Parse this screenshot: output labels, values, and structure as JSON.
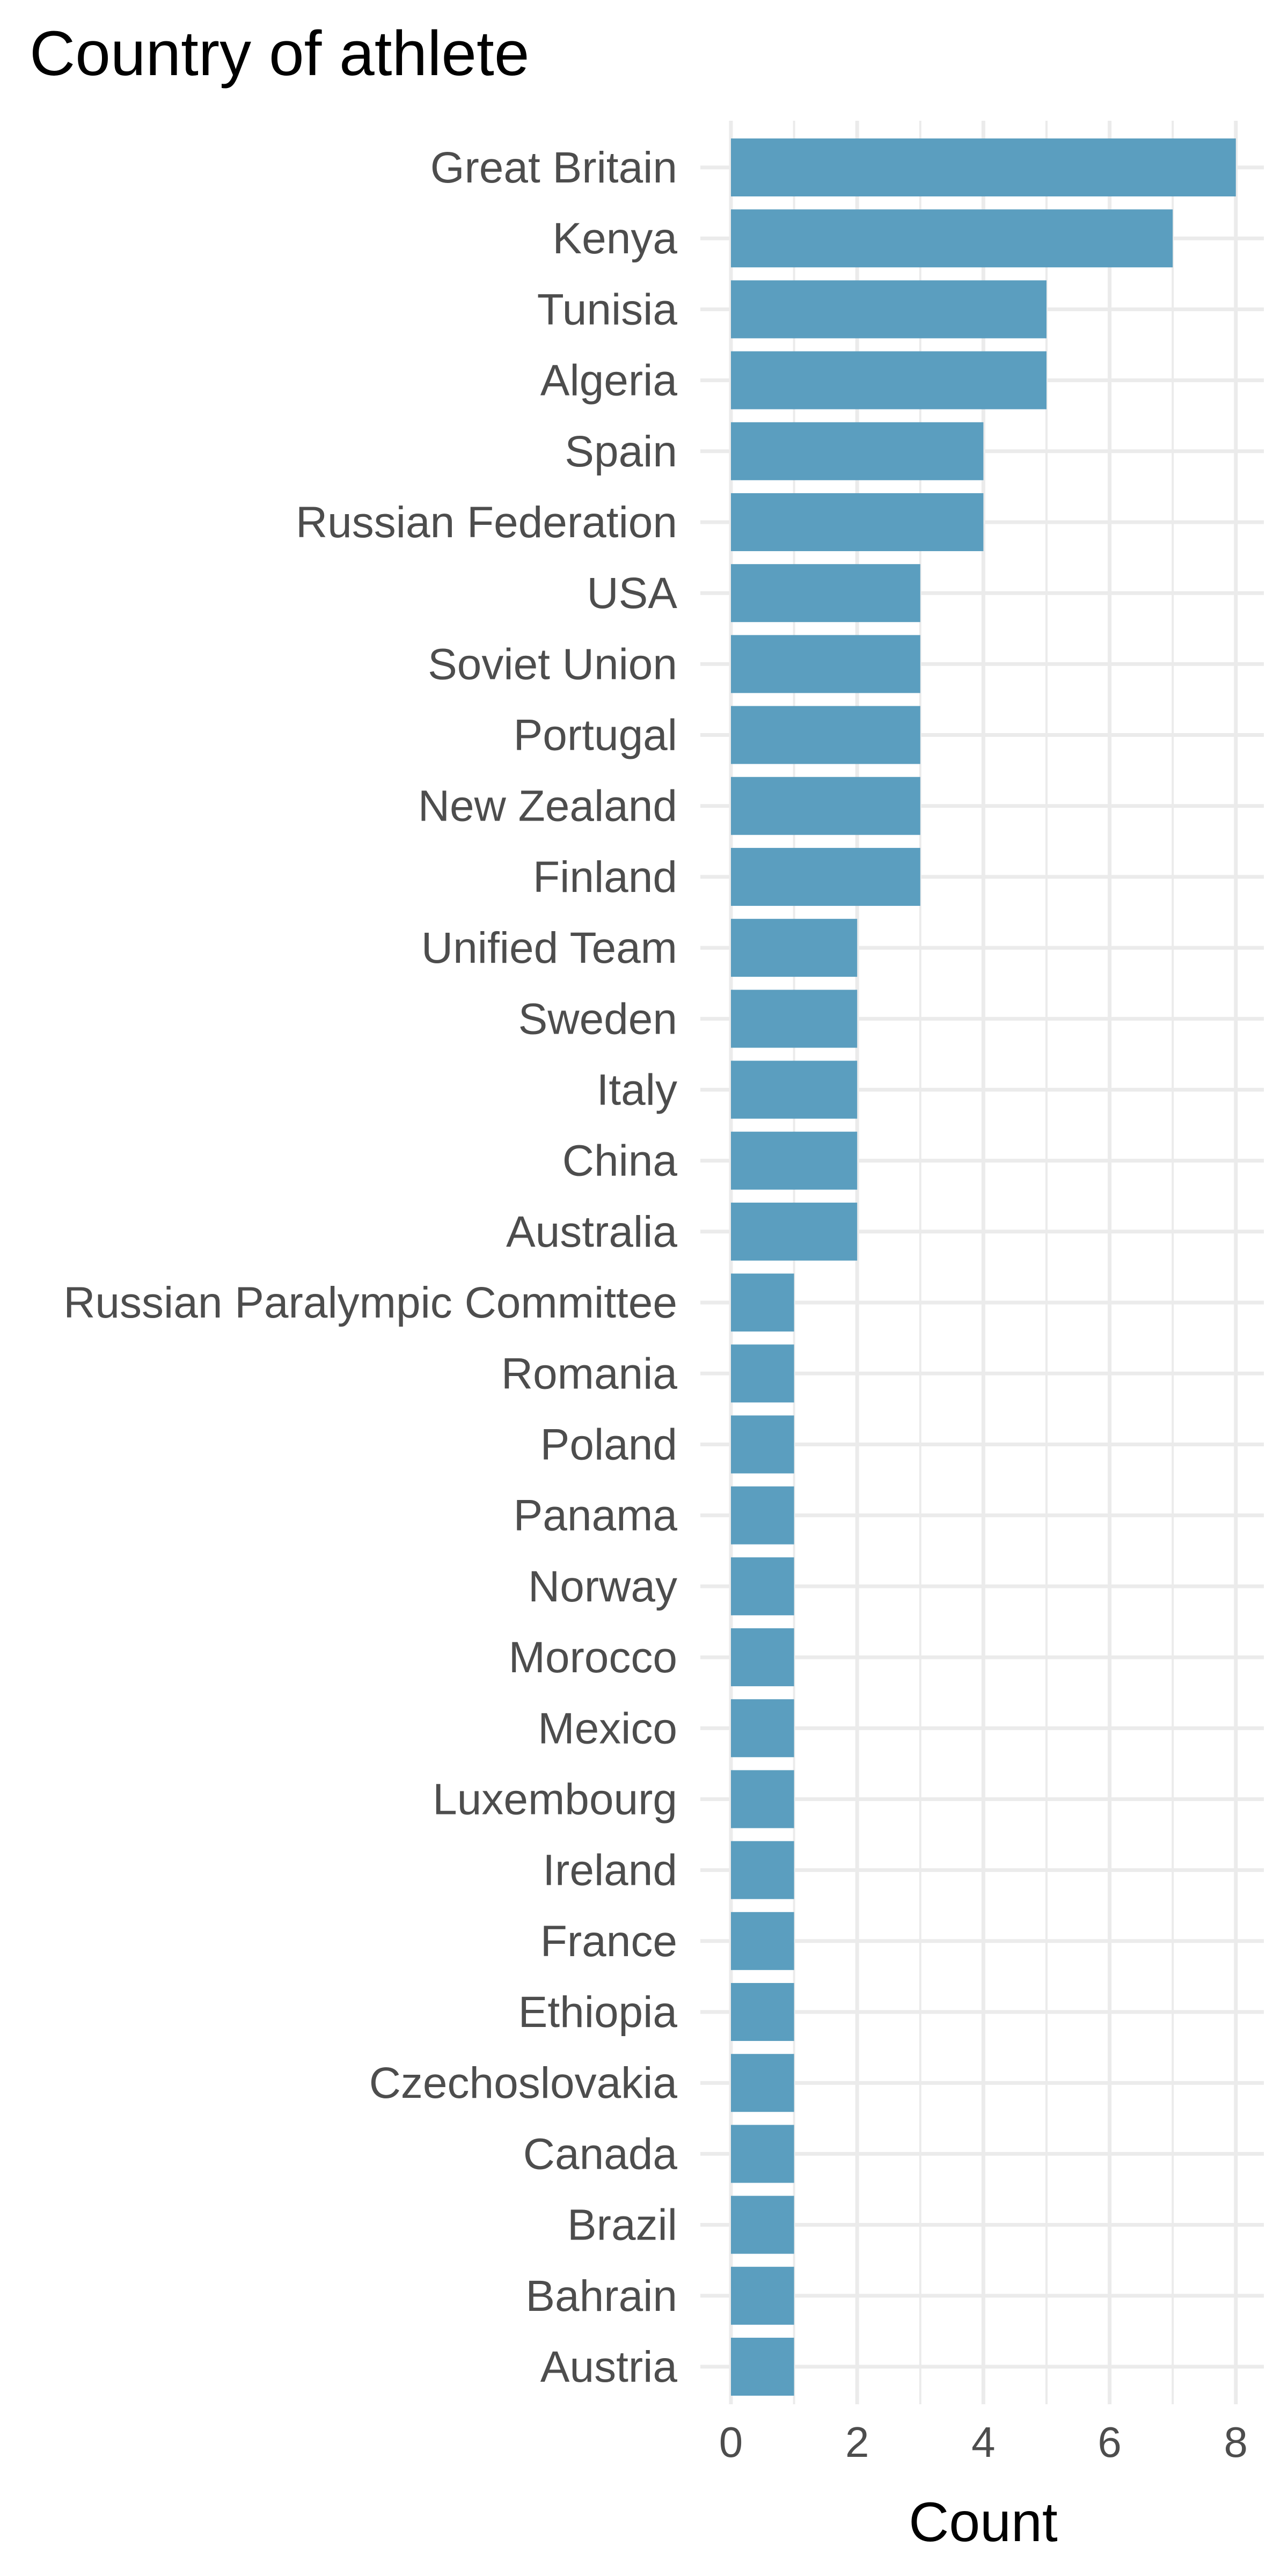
{
  "chart_data": {
    "type": "bar",
    "orientation": "horizontal",
    "title": "Country of athlete",
    "xlabel": "Count",
    "ylabel": "",
    "xlim": [
      0,
      8.4
    ],
    "x_ticks": [
      0,
      2,
      4,
      6,
      8
    ],
    "grid": true,
    "bar_color": "#5b9ebf",
    "categories": [
      "Great Britain",
      "Kenya",
      "Tunisia",
      "Algeria",
      "Spain",
      "Russian Federation",
      "USA",
      "Soviet Union",
      "Portugal",
      "New Zealand",
      "Finland",
      "Unified Team",
      "Sweden",
      "Italy",
      "China",
      "Australia",
      "Russian Paralympic Committee",
      "Romania",
      "Poland",
      "Panama",
      "Norway",
      "Morocco",
      "Mexico",
      "Luxembourg",
      "Ireland",
      "France",
      "Ethiopia",
      "Czechoslovakia",
      "Canada",
      "Brazil",
      "Bahrain",
      "Austria"
    ],
    "values": [
      8,
      7,
      5,
      5,
      4,
      4,
      3,
      3,
      3,
      3,
      3,
      2,
      2,
      2,
      2,
      2,
      1,
      1,
      1,
      1,
      1,
      1,
      1,
      1,
      1,
      1,
      1,
      1,
      1,
      1,
      1,
      1
    ]
  }
}
